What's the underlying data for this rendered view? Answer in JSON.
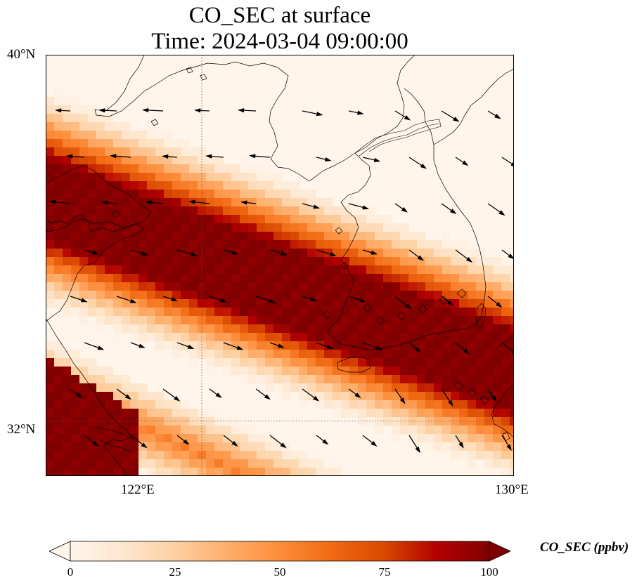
{
  "title": {
    "line1": "CO_SEC at surface",
    "line2": "Time: 2024-03-04 09:00:00"
  },
  "map": {
    "lon_range": [
      118,
      130
    ],
    "lat_range": [
      30.8,
      40
    ],
    "lat_labels": [
      {
        "value": 40,
        "text": "40°N"
      },
      {
        "value": 32,
        "text": "32°N"
      }
    ],
    "lon_labels": [
      {
        "value": 122,
        "text": "122°E"
      },
      {
        "value": 130,
        "text": "130°E"
      }
    ],
    "gridlines": {
      "lon": [
        122
      ],
      "lat": [
        32
      ]
    }
  },
  "colorbar": {
    "label": "CO_SEC (ppbv)",
    "min": 0,
    "max": 100,
    "ticks": [
      0,
      25,
      50,
      75,
      100
    ],
    "colormap": [
      "#fff5eb",
      "#fee6ce",
      "#fdd0a2",
      "#fdae6b",
      "#fd8d3c",
      "#f16913",
      "#d94801",
      "#b30000",
      "#7f0000"
    ],
    "extend": "both"
  }
}
